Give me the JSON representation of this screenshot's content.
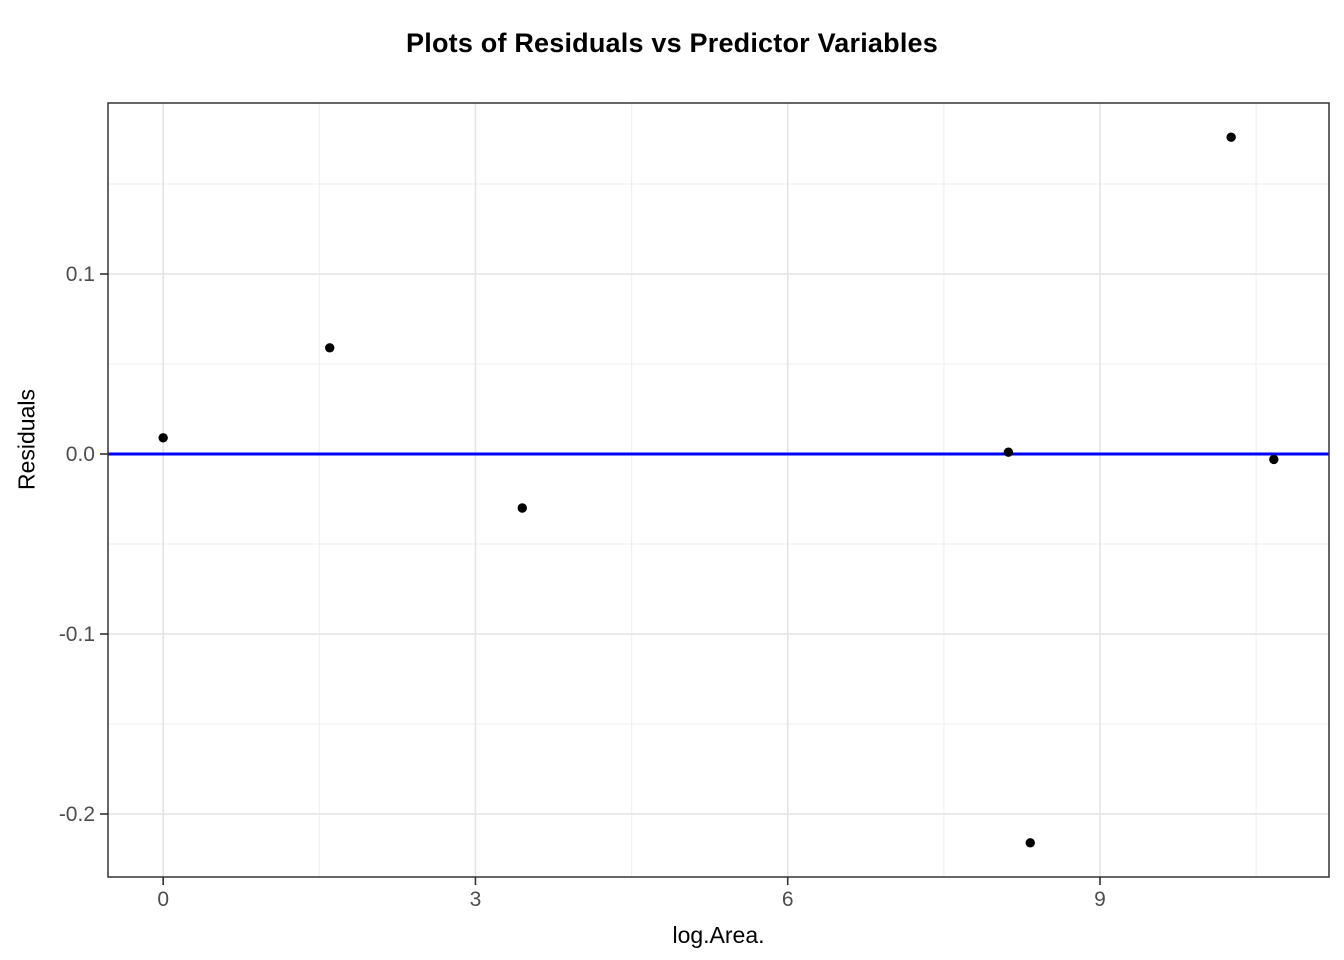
{
  "chart_data": {
    "type": "scatter",
    "title": "Plots of Residuals vs Predictor Variables",
    "xlabel": "log.Area.",
    "ylabel": "Residuals",
    "xlim": [
      -0.53,
      11.2
    ],
    "ylim": [
      -0.235,
      0.195
    ],
    "x_ticks": {
      "major": [
        0,
        3,
        6,
        9
      ],
      "labels": [
        "0",
        "3",
        "6",
        "9"
      ],
      "minor": [
        1.5,
        4.5,
        7.5,
        10.5
      ]
    },
    "y_ticks": {
      "major": [
        0.1,
        0.0,
        -0.1,
        -0.2
      ],
      "labels": [
        "0.1",
        "0.0",
        "-0.1",
        "-0.2"
      ],
      "minor": [
        0.15,
        0.05,
        -0.05,
        -0.15
      ]
    },
    "points": [
      {
        "x": 0.0,
        "y": 0.009
      },
      {
        "x": 1.6,
        "y": 0.059
      },
      {
        "x": 3.45,
        "y": -0.03
      },
      {
        "x": 8.12,
        "y": 0.001
      },
      {
        "x": 8.33,
        "y": -0.216
      },
      {
        "x": 10.26,
        "y": 0.176
      },
      {
        "x": 10.67,
        "y": -0.003
      }
    ],
    "reference_line": {
      "y": 0.0,
      "color": "#0000ff"
    },
    "grid": true,
    "legend_position": "none",
    "colors": {
      "point": "#000000",
      "grid_major": "#e4e4e4",
      "grid_minor": "#f0f0f0",
      "panel_border": "#333333",
      "tick_mark": "#333333",
      "tick_label": "#4d4d4d",
      "axis_title": "#000000",
      "title": "#000000",
      "panel_background": "#ffffff"
    }
  }
}
